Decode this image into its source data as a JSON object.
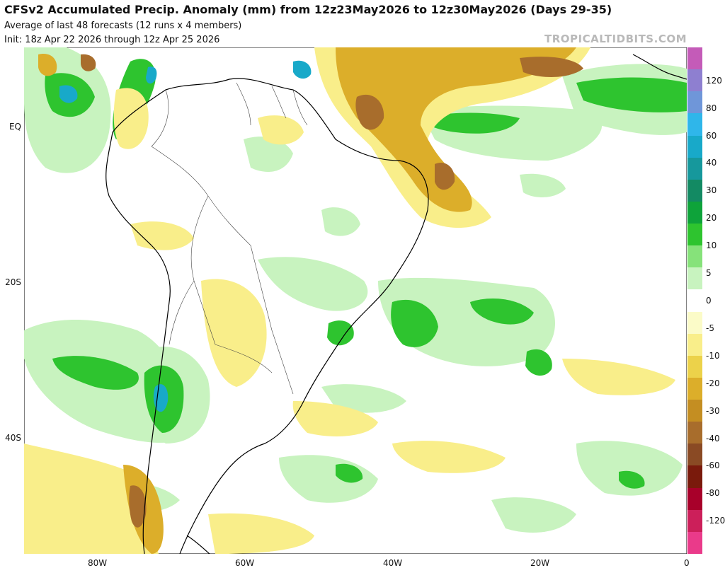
{
  "header": {
    "title": "CFSv2 Accumulated Precip. Anomaly (mm) from 12z23May2026 to 12z30May2026 (Days 29-35)",
    "subtitle": "Average of last 48 forecasts (12 runs x 4 members)",
    "init": "Init: 18z Apr 22 2026 through 12z Apr 25 2026",
    "brand": "TROPICALTIDBITS.COM"
  },
  "axes": {
    "lat_labels": [
      "EQ",
      "20S",
      "40S"
    ],
    "lon_labels": [
      "80W",
      "60W",
      "40W",
      "20W",
      "0"
    ]
  },
  "colorbar": {
    "labels": [
      "120",
      "80",
      "60",
      "40",
      "30",
      "20",
      "10",
      "5",
      "0",
      "-5",
      "-10",
      "-20",
      "-30",
      "-40",
      "-60",
      "-80",
      "-120"
    ],
    "colors": [
      "#c45bb8",
      "#8e7fd0",
      "#6f96d9",
      "#2fb6ea",
      "#18a9c9",
      "#16989c",
      "#138a63",
      "#0ea33a",
      "#2ec42f",
      "#86e27a",
      "#c8f3bf",
      "#ffffff",
      "#fbfbc8",
      "#f9ee8a",
      "#ecd24a",
      "#dcae2a",
      "#c48e22",
      "#a86d2c",
      "#8a4a24",
      "#7a1a0c",
      "#a8002a",
      "#cc1f5a",
      "#ea3a8a"
    ]
  }
}
